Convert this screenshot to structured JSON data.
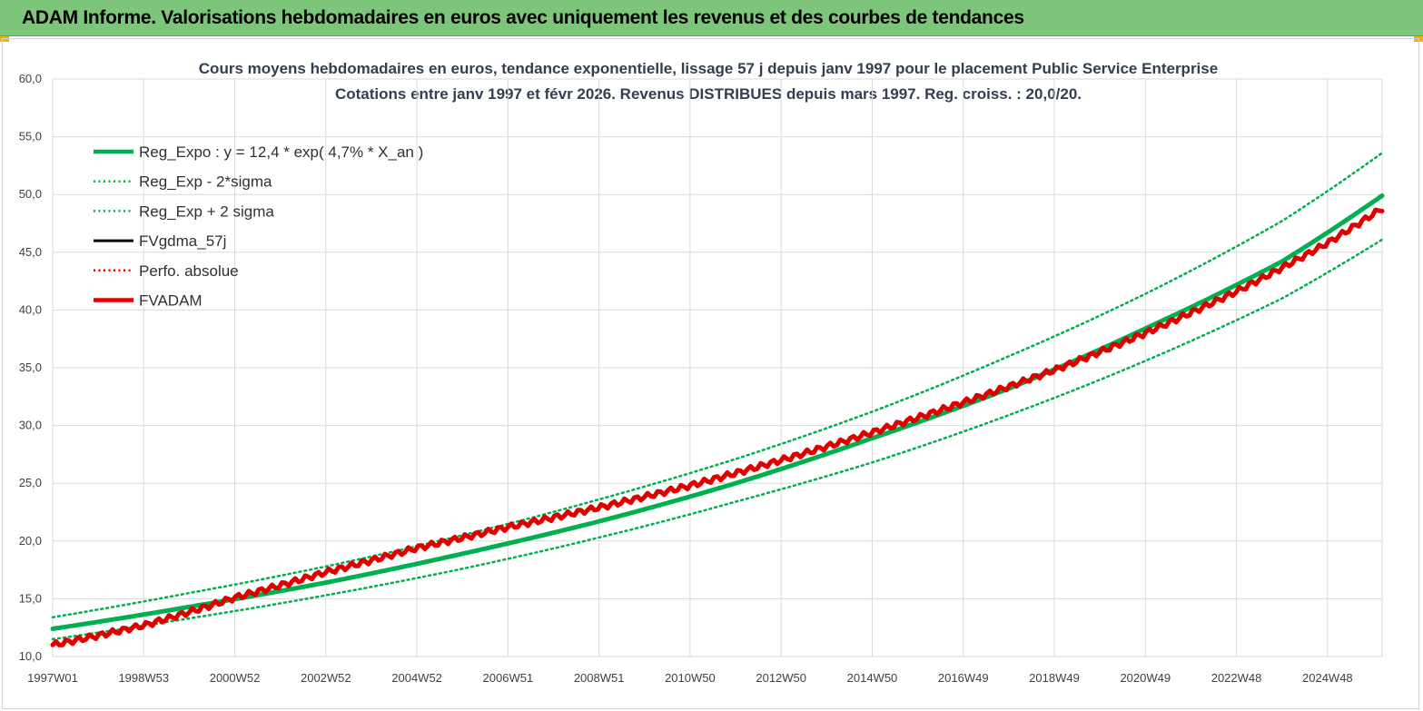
{
  "header": {
    "title": "ADAM Informe. Valorisations hebdomadaires en euros avec uniquement les revenus et des courbes de tendances"
  },
  "chart_data": {
    "type": "line",
    "title_line1": "Cours moyens hebdomadaires en euros, tendance exponentielle, lissage 57 j depuis janv 1997 pour le placement Public Service  Enterprise",
    "title_line2": "Cotations entre janv 1997 et févr 2026. Revenus DISTRIBUES depuis mars 1997. Reg. croiss. : 20,0/20.",
    "ylim": [
      10,
      60
    ],
    "y_ticks": [
      "10,0",
      "15,0",
      "20,0",
      "25,0",
      "30,0",
      "35,0",
      "40,0",
      "45,0",
      "50,0",
      "55,0",
      "60,0"
    ],
    "x_range_years": [
      1997.0,
      2026.2
    ],
    "x_ticks": [
      {
        "label": "1997W01",
        "year": 1997.0
      },
      {
        "label": "1998W53",
        "year": 1999.0
      },
      {
        "label": "2000W52",
        "year": 2001.0
      },
      {
        "label": "2002W52",
        "year": 2003.0
      },
      {
        "label": "2004W52",
        "year": 2005.0
      },
      {
        "label": "2006W51",
        "year": 2007.0
      },
      {
        "label": "2008W51",
        "year": 2009.0
      },
      {
        "label": "2010W50",
        "year": 2011.0
      },
      {
        "label": "2012W50",
        "year": 2013.0
      },
      {
        "label": "2014W50",
        "year": 2015.0
      },
      {
        "label": "2016W49",
        "year": 2017.0
      },
      {
        "label": "2018W49",
        "year": 2019.0
      },
      {
        "label": "2020W49",
        "year": 2021.0
      },
      {
        "label": "2022W48",
        "year": 2023.0
      },
      {
        "label": "2024W48",
        "year": 2025.0
      }
    ],
    "grid": true,
    "legend_position": "top-left",
    "series": [
      {
        "name": "Reg_Expo : y = 12,4 * exp( 4,7% *  X_an )",
        "color": "#00b050",
        "style": "solid-thick",
        "points": [
          [
            1997.0,
            12.4
          ],
          [
            2000.0,
            14.3
          ],
          [
            2003.0,
            16.4
          ],
          [
            2006.0,
            18.9
          ],
          [
            2009.0,
            21.7
          ],
          [
            2012.0,
            25.0
          ],
          [
            2015.0,
            28.9
          ],
          [
            2018.0,
            33.2
          ],
          [
            2021.0,
            38.4
          ],
          [
            2024.0,
            44.2
          ],
          [
            2026.2,
            49.9
          ]
        ]
      },
      {
        "name": "Reg_Exp - 2*sigma",
        "color": "#00b050",
        "style": "dotted",
        "points": [
          [
            1997.0,
            11.5
          ],
          [
            2000.0,
            13.3
          ],
          [
            2003.0,
            15.3
          ],
          [
            2006.0,
            17.6
          ],
          [
            2009.0,
            20.3
          ],
          [
            2012.0,
            23.4
          ],
          [
            2015.0,
            26.8
          ],
          [
            2018.0,
            30.9
          ],
          [
            2021.0,
            35.6
          ],
          [
            2024.0,
            41.0
          ],
          [
            2026.2,
            46.1
          ]
        ]
      },
      {
        "name": "Reg_Exp + 2 sigma",
        "color": "#00b050",
        "style": "dotted",
        "points": [
          [
            1997.0,
            13.4
          ],
          [
            2000.0,
            15.5
          ],
          [
            2003.0,
            17.8
          ],
          [
            2006.0,
            20.5
          ],
          [
            2009.0,
            23.6
          ],
          [
            2012.0,
            27.1
          ],
          [
            2015.0,
            31.2
          ],
          [
            2018.0,
            36.0
          ],
          [
            2021.0,
            41.4
          ],
          [
            2024.0,
            47.7
          ],
          [
            2026.2,
            53.6
          ]
        ]
      },
      {
        "name": "FVgdma_57j",
        "color": "#000000",
        "style": "solid",
        "points": []
      },
      {
        "name": "Perfo. absolue",
        "color": "#e00000",
        "style": "dotted",
        "points": []
      },
      {
        "name": "FVADAM",
        "color": "#e00000",
        "style": "solid-thick",
        "points": [
          [
            1997.0,
            11.0
          ],
          [
            1999.0,
            12.7
          ],
          [
            2001.0,
            15.1
          ],
          [
            2003.0,
            17.3
          ],
          [
            2005.0,
            19.4
          ],
          [
            2007.0,
            21.2
          ],
          [
            2009.0,
            22.9
          ],
          [
            2011.0,
            24.8
          ],
          [
            2013.0,
            27.0
          ],
          [
            2015.0,
            29.4
          ],
          [
            2017.0,
            32.0
          ],
          [
            2019.0,
            34.8
          ],
          [
            2021.0,
            38.0
          ],
          [
            2023.0,
            41.6
          ],
          [
            2025.0,
            45.8
          ],
          [
            2026.2,
            48.8
          ]
        ]
      }
    ]
  }
}
